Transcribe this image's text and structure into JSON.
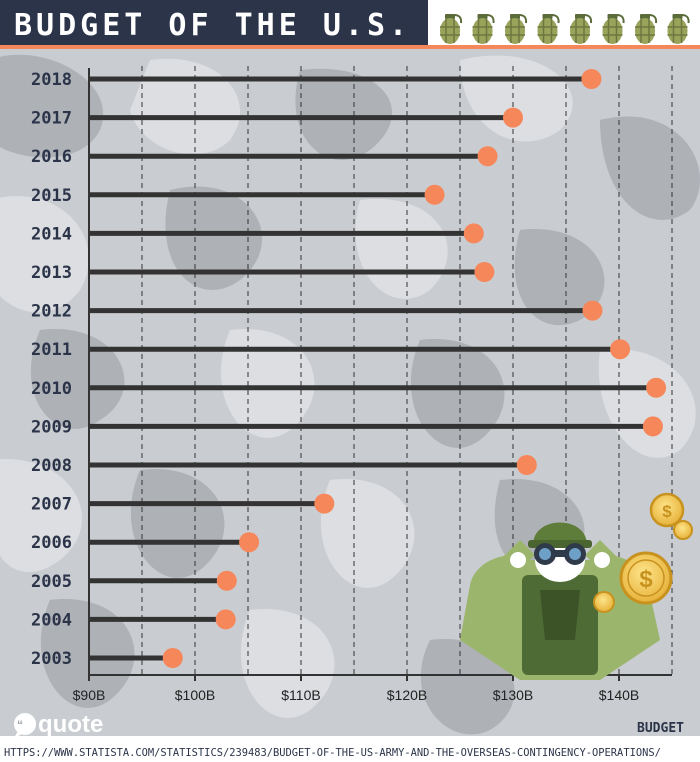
{
  "header": {
    "title": "BUDGET OF THE U.S. ARMY",
    "title_bg": "#2b3449",
    "accent": "#f6875a",
    "grenade_icon": "grenade-icon",
    "grenade_count": 8
  },
  "chart_data": {
    "type": "lollipop",
    "title": "BUDGET OF THE U.S. ARMY",
    "xlabel": "BUDGET",
    "ylabel": "",
    "xlim": [
      90,
      145
    ],
    "x_ticks": [
      90,
      100,
      110,
      120,
      130,
      140
    ],
    "x_tick_labels": [
      "$90B",
      "$100B",
      "$110B",
      "$120B",
      "$130B",
      "$140B"
    ],
    "grid": "vertical dashed every $5B",
    "categories": [
      "2018",
      "2017",
      "2016",
      "2015",
      "2014",
      "2013",
      "2012",
      "2011",
      "2010",
      "2009",
      "2008",
      "2007",
      "2006",
      "2005",
      "2004",
      "2003"
    ],
    "values": [
      137.4,
      130.0,
      127.6,
      122.6,
      126.3,
      127.3,
      137.5,
      140.1,
      143.5,
      143.2,
      131.3,
      112.2,
      105.1,
      103.0,
      102.9,
      97.9
    ],
    "stem_color": "#333333",
    "dot_color": "#f6875a"
  },
  "footer": {
    "logo": "quote",
    "logo_icon": "quote-bubble-icon",
    "source": "HTTPS://WWW.STATISTA.COM/STATISTICS/239483/BUDGET-OF-THE-US-ARMY-AND-THE-OVERSEAS-CONTINGENCY-OPERATIONS/"
  },
  "illustration": {
    "soldier_icon": "soldier-with-binoculars-icon",
    "coin_icon": "dollar-coin-icon"
  }
}
